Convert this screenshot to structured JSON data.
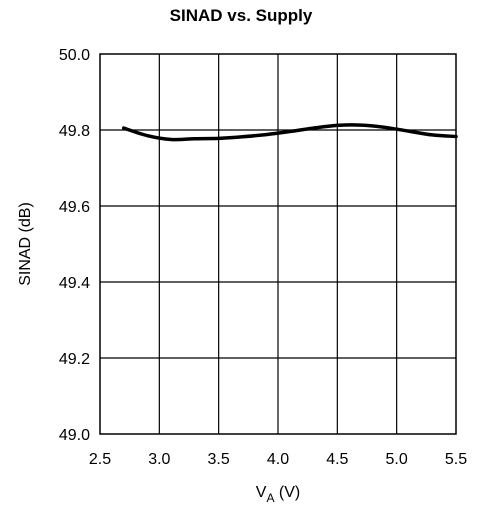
{
  "chart_data": {
    "type": "line",
    "title": "SINAD vs. Supply",
    "xlabel": "V",
    "xlabel_sub": "A",
    "xlabel_unit": " (V)",
    "ylabel": "SINAD (dB)",
    "xlim": [
      2.5,
      5.5
    ],
    "ylim": [
      49.0,
      50.0
    ],
    "xticks": [
      "2.5",
      "3.0",
      "3.5",
      "4.0",
      "4.5",
      "5.0",
      "5.5"
    ],
    "yticks": [
      "49.0",
      "49.2",
      "49.4",
      "49.6",
      "49.8",
      "50.0"
    ],
    "grid": true,
    "series": [
      {
        "x": [
          2.7,
          2.9,
          3.1,
          3.3,
          3.5,
          3.7,
          3.9,
          4.1,
          4.3,
          4.5,
          4.7,
          4.9,
          5.1,
          5.3,
          5.5
        ],
        "values": [
          49.805,
          49.785,
          49.775,
          49.777,
          49.778,
          49.782,
          49.788,
          49.796,
          49.805,
          49.812,
          49.813,
          49.807,
          49.797,
          49.787,
          49.783
        ]
      }
    ],
    "colors": {
      "line": "#000000",
      "grid": "#000000"
    }
  }
}
